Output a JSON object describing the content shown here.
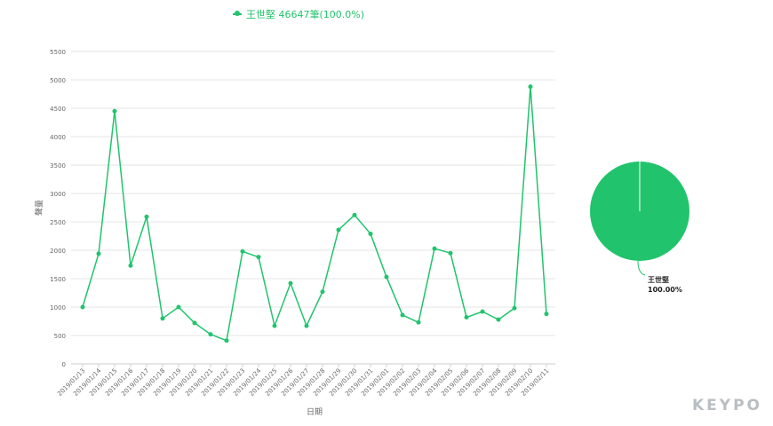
{
  "legend": {
    "label": "王世堅 46647筆(100.0%)"
  },
  "logo": {
    "text": "KEYPO"
  },
  "colors": {
    "series": "#21c46c",
    "grid": "#e6e6e6",
    "axis": "#cccccc",
    "tick_text": "#666666"
  },
  "chart_data": [
    {
      "type": "line",
      "title": "",
      "xlabel": "日期",
      "ylabel": "聲量",
      "ylim": [
        0,
        5500
      ],
      "yticks": [
        0,
        500,
        1000,
        1500,
        2000,
        2500,
        3000,
        3500,
        4000,
        4500,
        5000,
        5500
      ],
      "grid": true,
      "legend_position": "top",
      "categories": [
        "2019/01/13",
        "2019/01/14",
        "2019/01/15",
        "2019/01/16",
        "2019/01/17",
        "2019/01/18",
        "2019/01/19",
        "2019/01/20",
        "2019/01/21",
        "2019/01/22",
        "2019/01/23",
        "2019/01/24",
        "2019/01/25",
        "2019/01/26",
        "2019/01/27",
        "2019/01/28",
        "2019/01/29",
        "2019/01/30",
        "2019/01/31",
        "2019/02/01",
        "2019/02/02",
        "2019/02/03",
        "2019/02/04",
        "2019/02/05",
        "2019/02/06",
        "2019/02/07",
        "2019/02/08",
        "2019/02/09",
        "2019/02/10",
        "2019/02/11"
      ],
      "series": [
        {
          "name": "王世堅",
          "values": [
            1000,
            1940,
            4450,
            1730,
            2590,
            800,
            1000,
            720,
            520,
            410,
            1980,
            1880,
            670,
            1420,
            670,
            1270,
            2360,
            2620,
            2290,
            1530,
            860,
            730,
            2030,
            1950,
            820,
            920,
            780,
            980,
            4880,
            880
          ]
        }
      ]
    },
    {
      "type": "pie",
      "slices": [
        {
          "name": "王世堅",
          "value": 46647,
          "label": "100.00%"
        }
      ]
    }
  ]
}
